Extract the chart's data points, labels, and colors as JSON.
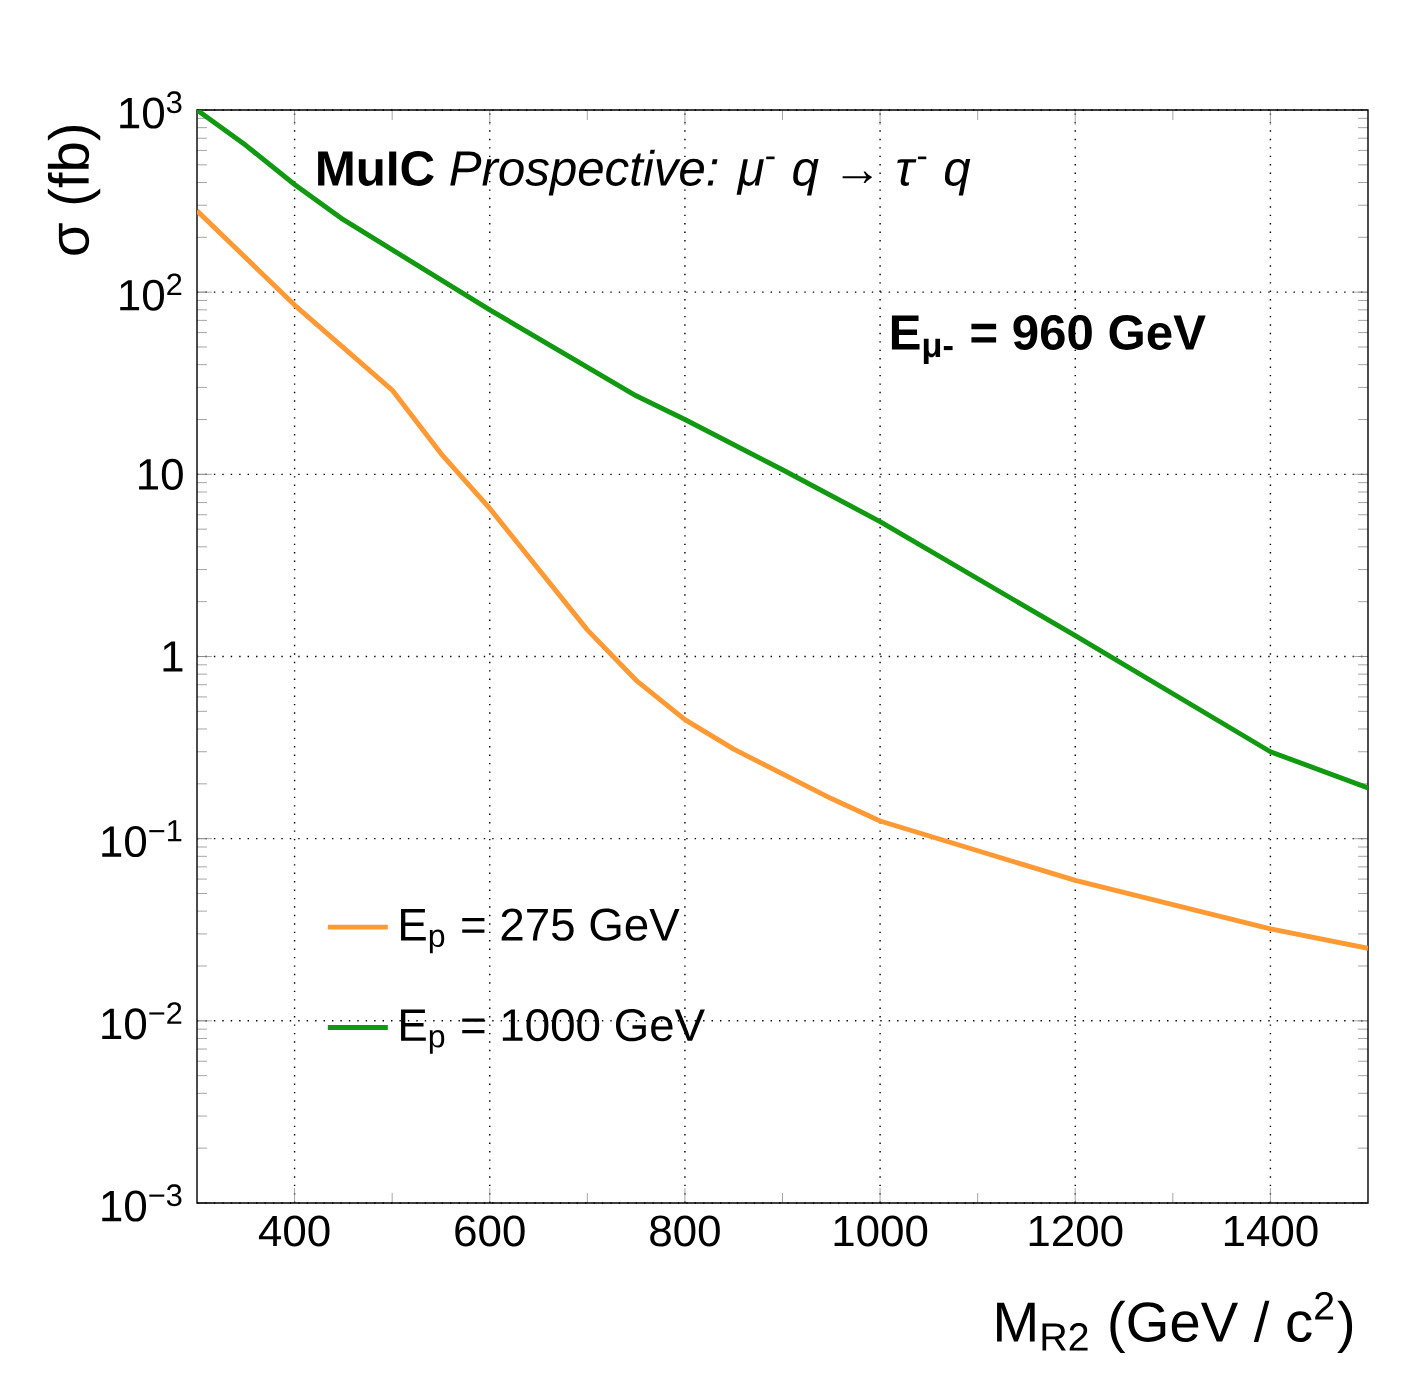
{
  "chart_data": {
    "type": "line",
    "title": "**MuIC** *Prospective:* *μ*$^{-}$ *q* → *τ*$^{-}$ *q*",
    "annotations": [
      "E$_{μ-}$ = 960 GeV"
    ],
    "xlabel": "M$_{R2}$ (GeV / c$^{2}$)",
    "ylabel": "σ (fb)",
    "log": "y",
    "grid": true,
    "legend": "bottom left",
    "line_style": "solid",
    "marker": "none",
    "xlim": [
      300,
      1500
    ],
    "ylim": [
      0.001,
      1000
    ],
    "xticks": [
      400,
      600,
      800,
      1000,
      1200,
      1400
    ],
    "yticks": [
      {
        "value": 0.001,
        "label": "10$^{−3}$"
      },
      {
        "value": 0.01,
        "label": "10$^{−2}$"
      },
      {
        "value": 0.1,
        "label": "10$^{−1}$"
      },
      1,
      10,
      {
        "value": 100,
        "label": "10$^{2}$"
      },
      {
        "value": 1000,
        "label": "10$^{3}$"
      }
    ],
    "series": [
      {
        "name": "E$_{p}$ = 275 GeV",
        "color": "#ff9933",
        "x": [
          300,
          400,
          500,
          550,
          600,
          700,
          750,
          800,
          850,
          950,
          1000,
          1200,
          1400,
          1500
        ],
        "values": [
          280,
          85,
          29,
          13,
          6.5,
          1.4,
          0.74,
          0.45,
          0.31,
          0.166,
          0.125,
          0.059,
          0.032,
          0.025
        ]
      },
      {
        "name": "E$_{p}$ = 1000 GeV",
        "color": "#119911",
        "x": [
          300,
          350,
          400,
          450,
          600,
          750,
          800,
          900,
          1000,
          1200,
          1400,
          1500
        ],
        "values": [
          1000,
          640,
          390,
          250,
          80,
          27,
          20,
          10.6,
          5.5,
          1.3,
          0.3,
          0.19
        ]
      }
    ]
  }
}
